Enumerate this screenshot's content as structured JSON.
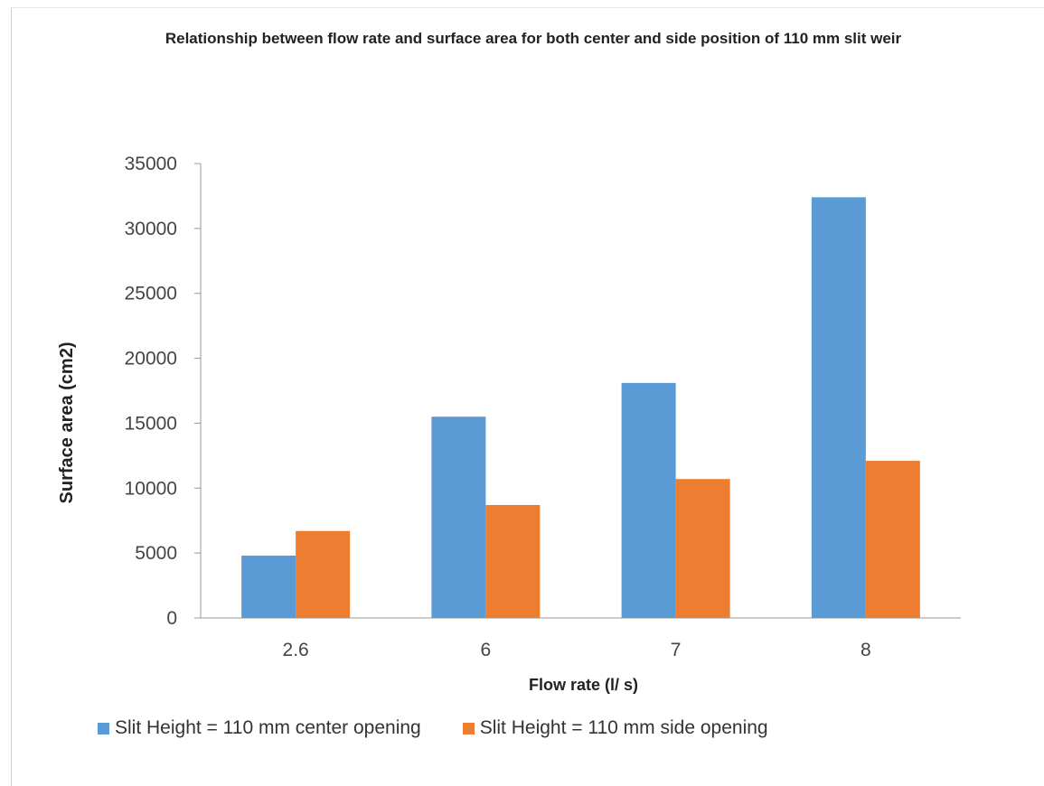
{
  "chart_data": {
    "type": "bar",
    "title": "Relationship between flow rate and surface area for both center and side position of  110 mm slit weir",
    "xlabel": "Flow rate (l/ s)",
    "ylabel": "Surface area (cm2)",
    "categories": [
      "2.6",
      "6",
      "7",
      "8"
    ],
    "ylim": [
      0,
      35000
    ],
    "yticks": [
      0,
      5000,
      10000,
      15000,
      20000,
      25000,
      30000,
      35000
    ],
    "grid": false,
    "legend_position": "bottom",
    "series": [
      {
        "name": "Slit Height = 110 mm center opening",
        "color": "#5B9BD5",
        "values": [
          4800,
          15500,
          18100,
          32400
        ]
      },
      {
        "name": "Slit Height = 110 mm side  opening",
        "color": "#ED7D31",
        "values": [
          6700,
          8700,
          10700,
          12100
        ]
      }
    ]
  }
}
